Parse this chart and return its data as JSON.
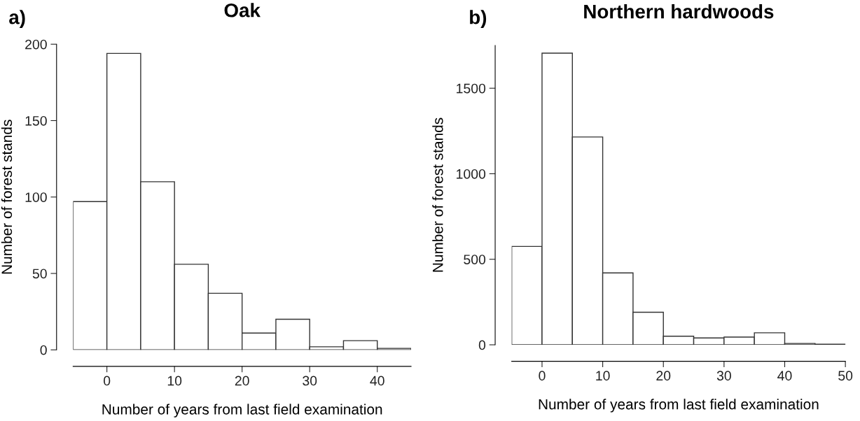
{
  "chart_data": [
    {
      "type": "histogram",
      "title": "Oak",
      "xlabel": "Number of years from last field examination",
      "ylabel": "Number of forest stands",
      "annotations": [
        "a)"
      ],
      "bins": [
        -5,
        0,
        5,
        10,
        15,
        20,
        25,
        30,
        35,
        40,
        45
      ],
      "values": [
        97,
        194,
        110,
        56,
        37,
        11,
        20,
        2,
        6,
        1
      ],
      "color": "#ffffff",
      "xlim": [
        -5,
        45
      ],
      "ylim": [
        0,
        200
      ],
      "xticks": [
        0,
        10,
        20,
        30,
        40
      ],
      "yticks": [
        0,
        50,
        100,
        150,
        200
      ],
      "grid": false,
      "legend": false
    },
    {
      "type": "histogram",
      "title": "Northern hardwoods",
      "xlabel": "Number of years from last field examination",
      "ylabel": "Number of forest stands",
      "annotations": [
        "b)"
      ],
      "bins": [
        -5,
        0,
        5,
        10,
        15,
        20,
        25,
        30,
        35,
        40,
        45,
        50
      ],
      "values": [
        575,
        1705,
        1215,
        420,
        190,
        50,
        40,
        45,
        70,
        8,
        3
      ],
      "color": "#ffffff",
      "xlim": [
        -5,
        50
      ],
      "ylim": [
        0,
        1750
      ],
      "xticks": [
        0,
        10,
        20,
        30,
        40,
        50
      ],
      "yticks": [
        0,
        500,
        1000,
        1500
      ],
      "grid": false,
      "legend": false
    }
  ]
}
